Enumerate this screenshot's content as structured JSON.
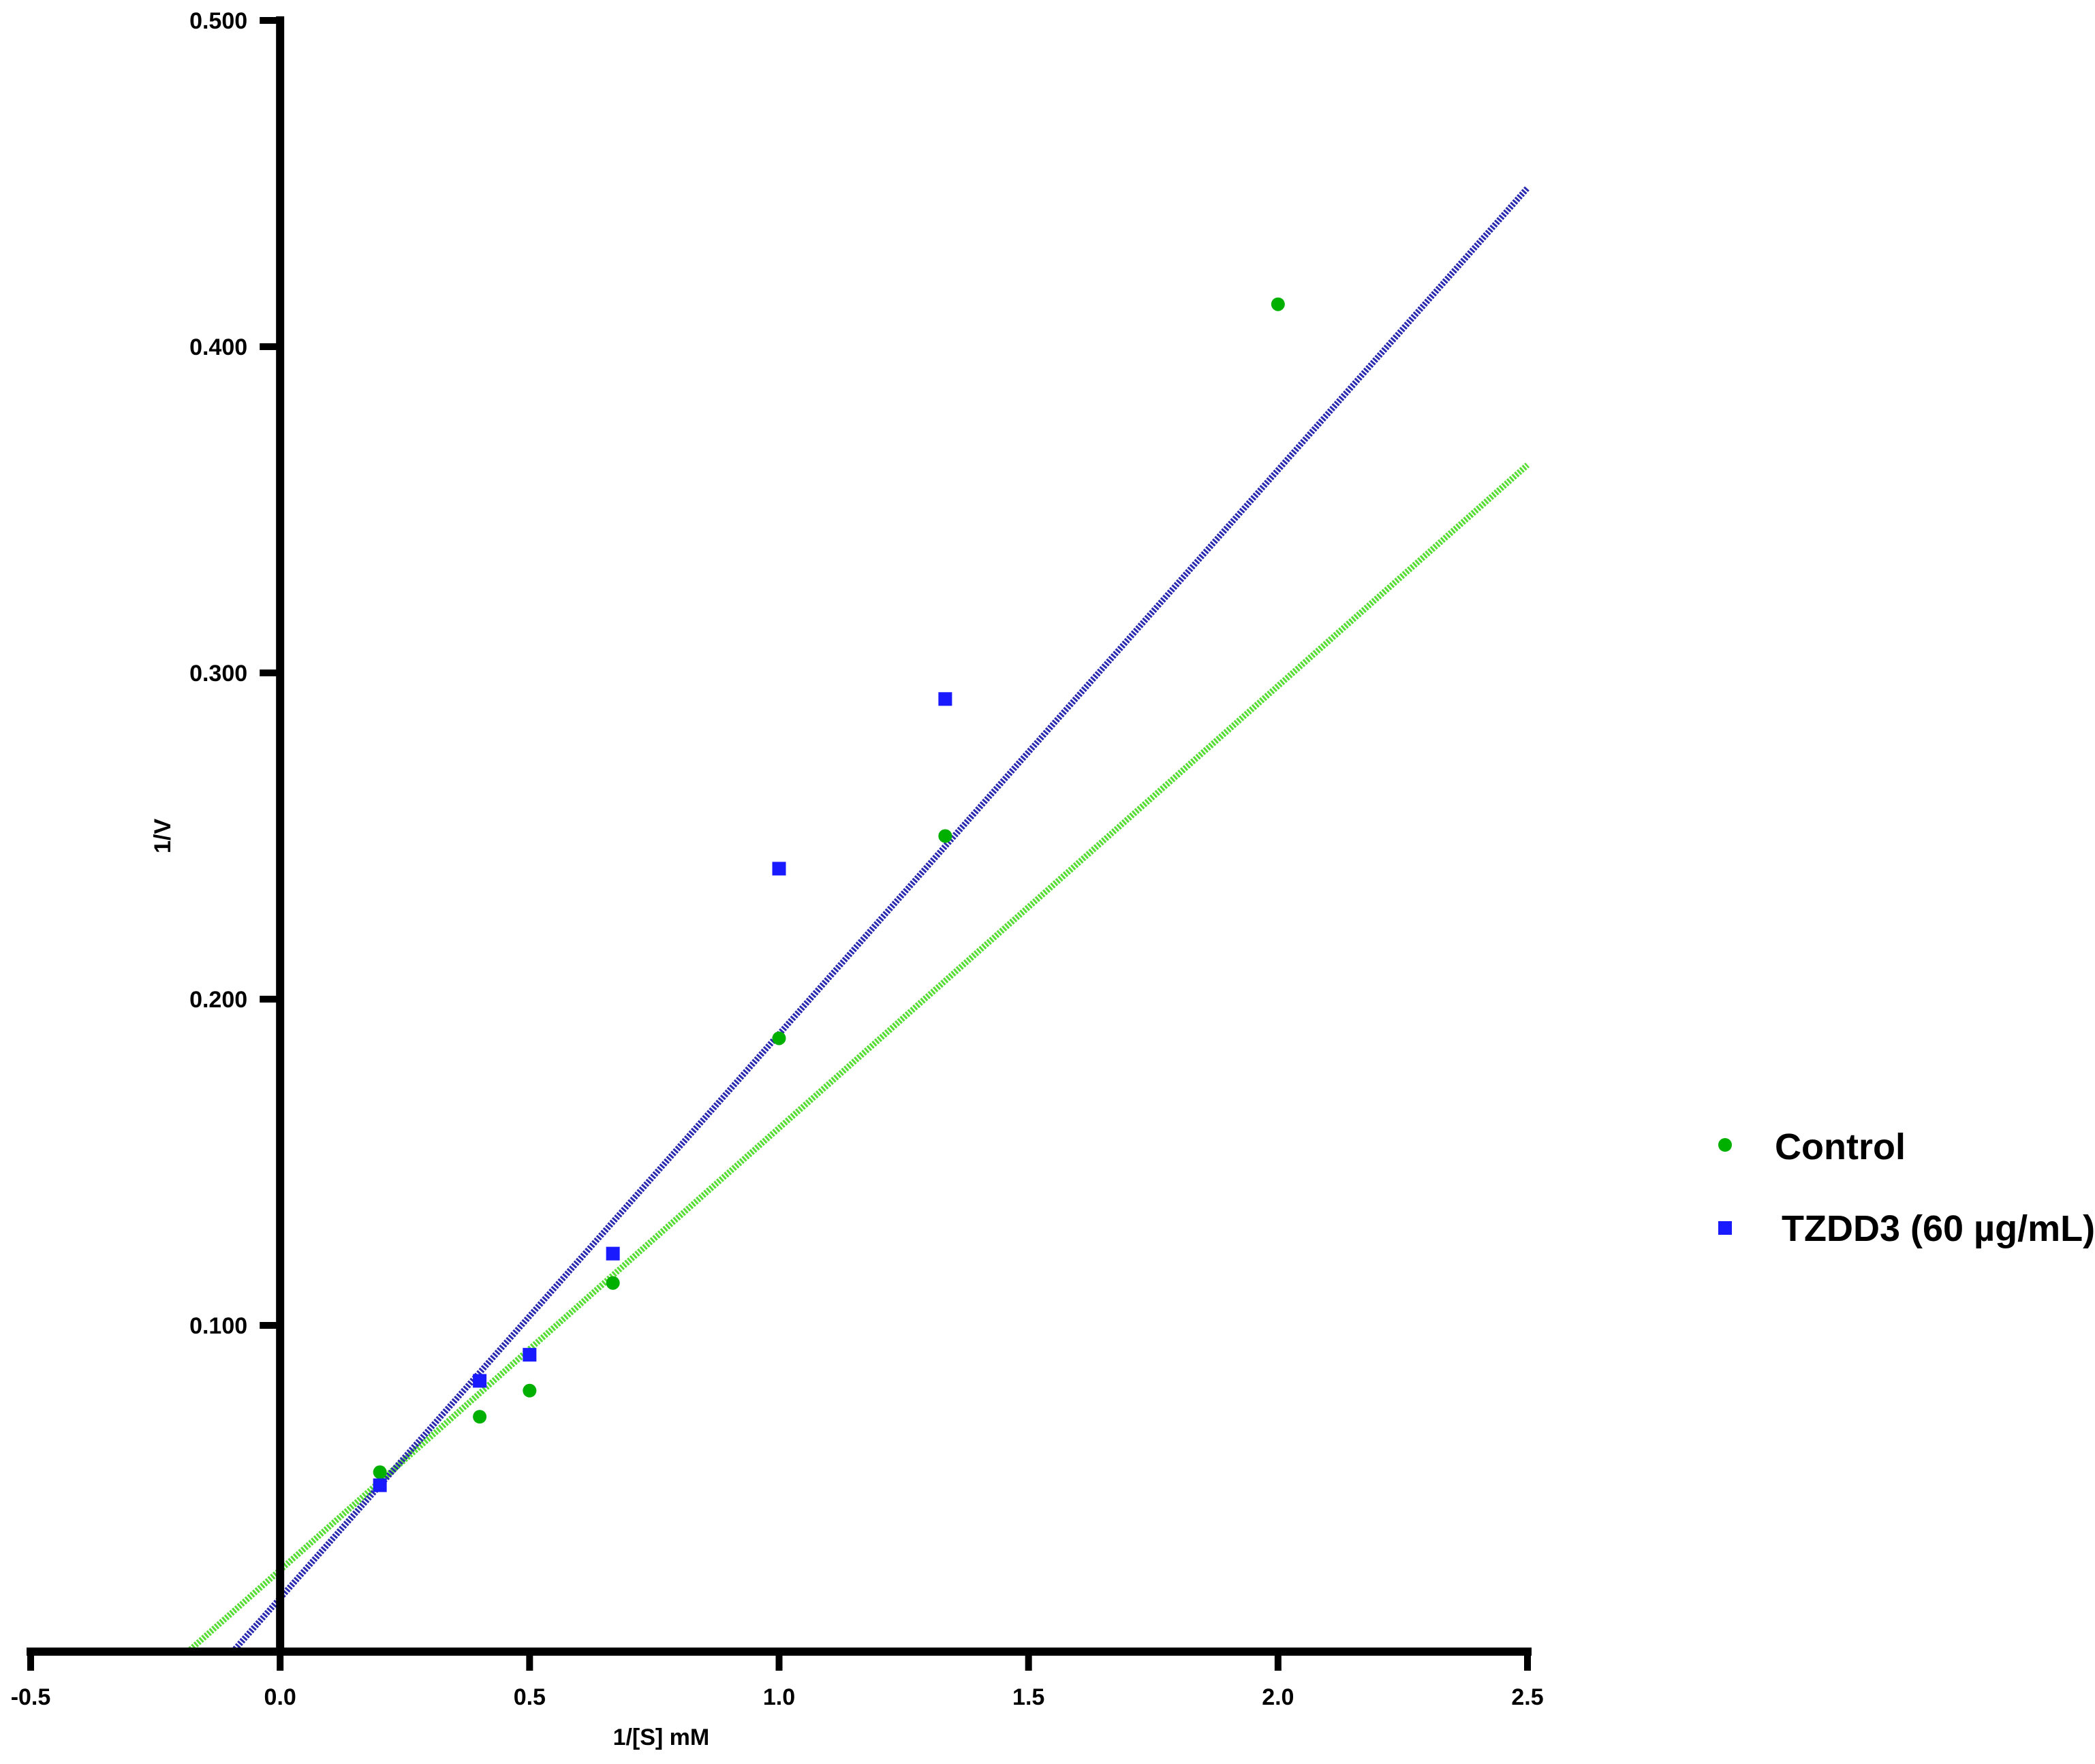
{
  "chart_data": {
    "type": "scatter",
    "title": "",
    "xlabel": "1/[S] mM",
    "ylabel": "1/V",
    "xlim": [
      -0.5,
      2.5
    ],
    "ylim": [
      0.0,
      0.5
    ],
    "x_ticks": [
      "-0.5",
      "0.0",
      "0.5",
      "1.0",
      "1.5",
      "2.0",
      "2.5"
    ],
    "y_ticks": [
      "0.100",
      "0.200",
      "0.300",
      "0.400",
      "0.500"
    ],
    "grid": false,
    "legend_position": "right",
    "series": [
      {
        "name": "Control",
        "marker": "circle",
        "color": "#00b000",
        "line_color": "#55dd33",
        "points": [
          {
            "x": 0.2,
            "y": 0.055
          },
          {
            "x": 0.4,
            "y": 0.072
          },
          {
            "x": 0.5,
            "y": 0.08
          },
          {
            "x": 0.667,
            "y": 0.113
          },
          {
            "x": 1.0,
            "y": 0.188
          },
          {
            "x": 1.333,
            "y": 0.25
          },
          {
            "x": 2.0,
            "y": 0.413
          }
        ],
        "fit": {
          "x_start": -0.185,
          "x_end": 2.5,
          "slope": 0.1355,
          "intercept": 0.025
        }
      },
      {
        "name": "TZDD3 (60 µg/mL)",
        "marker": "square",
        "color": "#1a1aff",
        "line_color": "#2a2ab0",
        "points": [
          {
            "x": 0.2,
            "y": 0.051
          },
          {
            "x": 0.4,
            "y": 0.083
          },
          {
            "x": 0.5,
            "y": 0.091
          },
          {
            "x": 0.667,
            "y": 0.122
          },
          {
            "x": 1.0,
            "y": 0.24
          },
          {
            "x": 1.333,
            "y": 0.292
          }
        ],
        "fit": {
          "x_start": -0.095,
          "x_end": 2.5,
          "slope": 0.1729,
          "intercept": 0.0164
        }
      }
    ]
  }
}
